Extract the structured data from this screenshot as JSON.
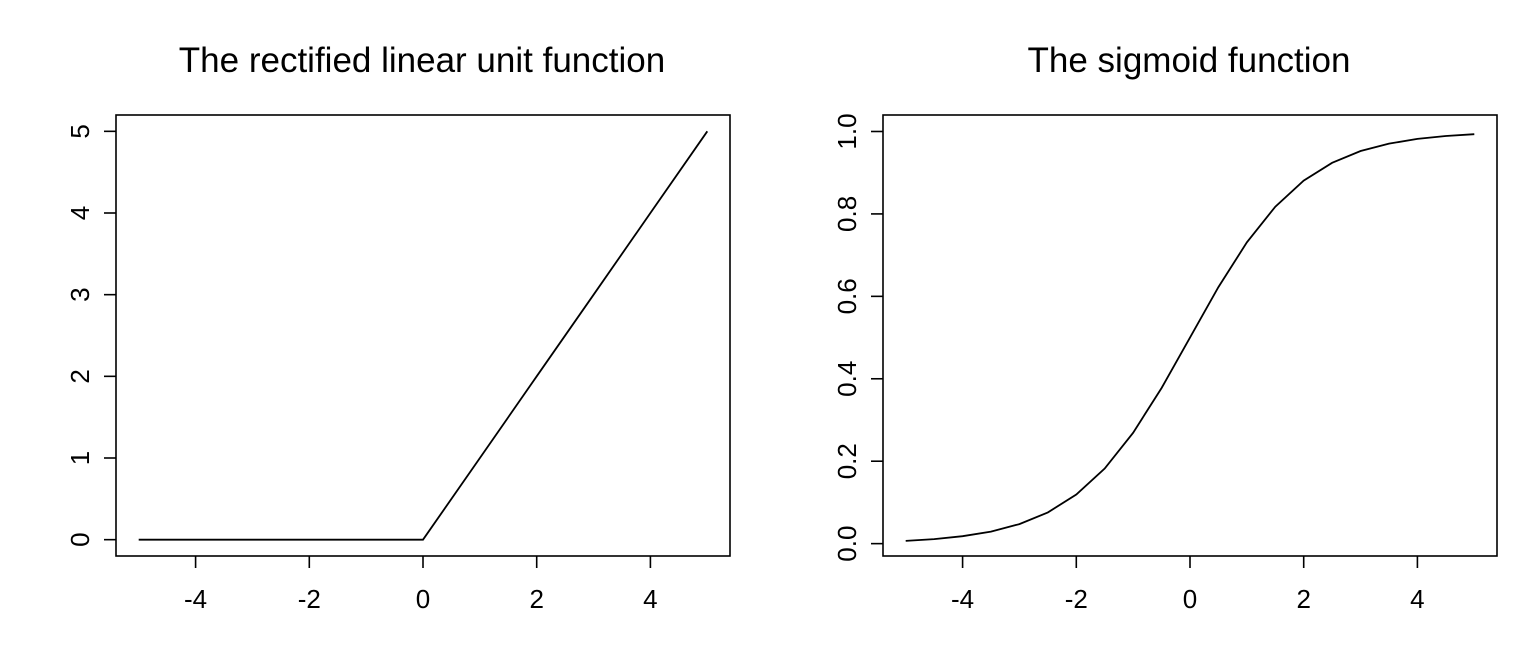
{
  "chart_data": [
    {
      "type": "line",
      "title": "The rectified linear unit function",
      "xlabel": "",
      "ylabel": "",
      "xlim": [
        -5.4,
        5.4
      ],
      "ylim": [
        -0.2,
        5.2
      ],
      "x_ticks": [
        -4,
        -2,
        0,
        2,
        4
      ],
      "x_tick_labels": [
        "-4",
        "-2",
        "0",
        "2",
        "4"
      ],
      "y_ticks": [
        0,
        1,
        2,
        3,
        4,
        5
      ],
      "y_tick_labels": [
        "0",
        "1",
        "2",
        "3",
        "4",
        "5"
      ],
      "grid": false,
      "series": [
        {
          "x": [
            -5,
            -4,
            -3,
            -2,
            -1,
            0,
            1,
            2,
            3,
            4,
            5
          ],
          "y": [
            0,
            0,
            0,
            0,
            0,
            0,
            1,
            2,
            3,
            4,
            5
          ]
        }
      ]
    },
    {
      "type": "line",
      "title": "The sigmoid function",
      "xlabel": "",
      "ylabel": "",
      "xlim": [
        -5.4,
        5.4
      ],
      "ylim": [
        -0.03,
        1.04
      ],
      "x_ticks": [
        -4,
        -2,
        0,
        2,
        4
      ],
      "x_tick_labels": [
        "-4",
        "-2",
        "0",
        "2",
        "4"
      ],
      "y_ticks": [
        0.0,
        0.2,
        0.4,
        0.6,
        0.8,
        1.0
      ],
      "y_tick_labels": [
        "0.0",
        "0.2",
        "0.4",
        "0.6",
        "0.8",
        "1.0"
      ],
      "grid": false,
      "series": [
        {
          "x": [
            -5,
            -4.5,
            -4,
            -3.5,
            -3,
            -2.5,
            -2,
            -1.5,
            -1,
            -0.5,
            0,
            0.5,
            1,
            1.5,
            2,
            2.5,
            3,
            3.5,
            4,
            4.5,
            5
          ],
          "y": [
            0.0067,
            0.011,
            0.018,
            0.0293,
            0.0474,
            0.0759,
            0.1192,
            0.1824,
            0.2689,
            0.3775,
            0.5,
            0.6225,
            0.7311,
            0.8176,
            0.8808,
            0.9241,
            0.9526,
            0.9707,
            0.982,
            0.989,
            0.9933
          ]
        }
      ]
    }
  ]
}
